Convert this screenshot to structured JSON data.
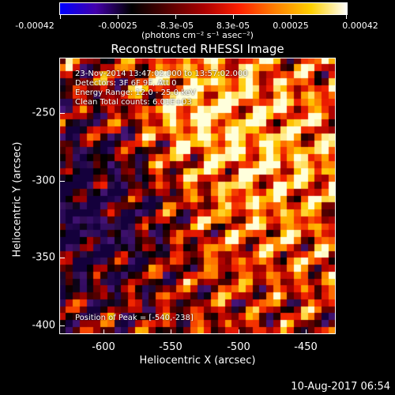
{
  "colorbar": {
    "gradient": [
      "#0000ff",
      "#4400aa",
      "#000000",
      "#550000",
      "#aa0000",
      "#ff2000",
      "#ff8000",
      "#ffd000",
      "#ffffff"
    ],
    "labels": [
      "-0.00042",
      "-0.00025",
      "-8.3e-05",
      "8.3e-05",
      "0.00025",
      "0.00042"
    ],
    "unit": "(photons cm⁻² s⁻¹ asec⁻²)"
  },
  "plot": {
    "title": "Reconstructed RHESSI Image",
    "info": [
      "23-Nov-2014 13:47:02.000 to 13:57:02.000",
      "Detectors: 3F 6F 9F, Att 0",
      "Energy Range: 12.0 - 25.0 keV",
      "Clean     Total counts: 6.01E+03"
    ],
    "peak_label": "Position of Peak = [-540,-238]",
    "x_ticks": [
      "-600",
      "-550",
      "-500",
      "-450"
    ],
    "y_ticks": [
      "-250",
      "-300",
      "-350",
      "-400"
    ],
    "xlabel": "Heliocentric X (arcsec)",
    "ylabel": "Heliocentric Y (arcsec)"
  },
  "timestamp": "10-Aug-2017 06:54"
}
